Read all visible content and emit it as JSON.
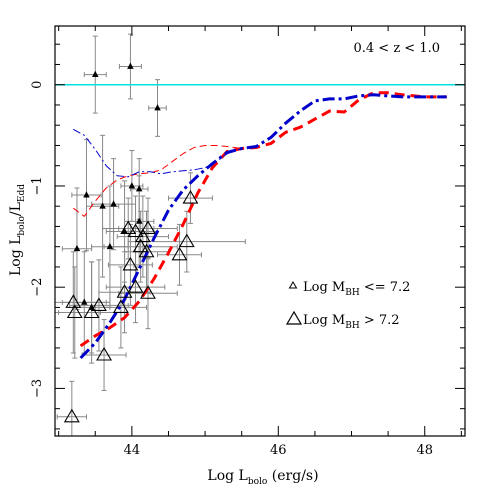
{
  "chart_data": {
    "type": "scatter",
    "title": "",
    "xlabel": {
      "main": "Log L",
      "sub": "bolo",
      "tail": " (erg/s)"
    },
    "ylabel": {
      "main": "Log L",
      "sub1": "bolo",
      "mid": "/L",
      "sub2": "Edd"
    },
    "xlim": [
      42.95,
      48.55
    ],
    "ylim": [
      -3.47,
      0.58
    ],
    "x_ticks": [
      44,
      46,
      48
    ],
    "y_ticks": [
      0,
      -1,
      -2,
      -3
    ],
    "x_tick_labels": [
      "44",
      "46",
      "48"
    ],
    "y_tick_labels": [
      "0",
      "−1",
      "−2",
      "−3"
    ],
    "redshift_label": "0.4  <  z  <  1.0",
    "legend": {
      "small": {
        "main": "Log M",
        "sub": "BH",
        "rel": " <= 7.2"
      },
      "large": {
        "main": "Log M",
        "sub": "BH",
        "rel": " > 7.2"
      }
    },
    "reference_line": {
      "y": 0,
      "color": "#00e0e0"
    },
    "colors": {
      "red": "#ff0000",
      "blue": "#0000cc",
      "points": "#000000",
      "errorbars": "#888888"
    },
    "series": [
      {
        "style": "thick-dashed-red",
        "x": [
          43.3,
          43.5,
          43.7,
          43.9,
          44.1,
          44.3,
          44.5,
          44.7,
          44.9,
          45.1,
          45.3,
          45.5,
          45.7,
          45.9,
          46.1,
          46.3,
          46.5,
          46.7,
          46.9,
          47.1,
          47.3,
          47.5,
          47.7,
          48.0,
          48.3
        ],
        "y": [
          -2.58,
          -2.48,
          -2.4,
          -2.3,
          -2.14,
          -1.92,
          -1.66,
          -1.38,
          -1.07,
          -0.82,
          -0.66,
          -0.63,
          -0.62,
          -0.58,
          -0.47,
          -0.42,
          -0.34,
          -0.26,
          -0.27,
          -0.15,
          -0.08,
          -0.08,
          -0.1,
          -0.12,
          -0.12
        ]
      },
      {
        "style": "thick-dashdot-blue",
        "x": [
          43.3,
          43.5,
          43.7,
          43.9,
          44.1,
          44.3,
          44.5,
          44.7,
          44.9,
          45.1,
          45.3,
          45.5,
          45.7,
          45.9,
          46.1,
          46.3,
          46.5,
          46.7,
          46.9,
          47.1,
          47.3,
          47.5,
          47.7,
          48.0,
          48.3
        ],
        "y": [
          -2.7,
          -2.55,
          -2.35,
          -2.12,
          -1.82,
          -1.52,
          -1.24,
          -1.04,
          -0.9,
          -0.78,
          -0.67,
          -0.63,
          -0.61,
          -0.52,
          -0.38,
          -0.26,
          -0.16,
          -0.14,
          -0.14,
          -0.11,
          -0.1,
          -0.11,
          -0.12,
          -0.12,
          -0.12
        ]
      },
      {
        "style": "thin-dashed-red",
        "x": [
          43.2,
          43.35,
          43.5,
          43.65,
          43.8,
          43.95,
          44.1,
          44.25,
          44.4,
          44.55,
          44.7,
          44.85,
          45.0,
          45.15,
          45.3,
          45.5
        ],
        "y": [
          -1.22,
          -1.3,
          -1.15,
          -1.02,
          -0.94,
          -0.9,
          -0.88,
          -0.87,
          -0.84,
          -0.76,
          -0.68,
          -0.62,
          -0.6,
          -0.6,
          -0.61,
          -0.63
        ]
      },
      {
        "style": "thin-dashdot-blue",
        "x": [
          43.2,
          43.35,
          43.5,
          43.65,
          43.8,
          43.95,
          44.1,
          44.25,
          44.4,
          44.55,
          44.7,
          44.85,
          45.0,
          45.15,
          45.3,
          45.5
        ],
        "y": [
          -0.44,
          -0.5,
          -0.64,
          -0.8,
          -0.9,
          -0.91,
          -0.86,
          -0.86,
          -0.88,
          -0.86,
          -0.85,
          -0.84,
          -0.82,
          -0.76,
          -0.68,
          -0.63
        ]
      }
    ],
    "points_small": [
      {
        "x": 43.5,
        "y": 0.1,
        "ex": 0.15,
        "ey": 0.38
      },
      {
        "x": 43.98,
        "y": 0.18,
        "ex": 0.15,
        "ey": 0.32
      },
      {
        "x": 44.35,
        "y": -0.23,
        "ex": 0.12,
        "ey": 0.28
      },
      {
        "x": 43.38,
        "y": -1.09,
        "ex": 0.2,
        "ey": 0.55
      },
      {
        "x": 43.6,
        "y": -1.2,
        "ex": 0.22,
        "ey": 0.7
      },
      {
        "x": 43.7,
        "y": -1.6,
        "ex": 0.25,
        "ey": 0.6
      },
      {
        "x": 44.1,
        "y": -1.03,
        "ex": 0.12,
        "ey": 0.3
      },
      {
        "x": 43.75,
        "y": -1.18,
        "ex": 0.3,
        "ey": 0.45
      },
      {
        "x": 44.0,
        "y": -1.0,
        "ex": 0.15,
        "ey": 0.35
      },
      {
        "x": 43.25,
        "y": -1.62,
        "ex": 0.2,
        "ey": 0.6
      },
      {
        "x": 44.1,
        "y": -1.35,
        "ex": 0.2,
        "ey": 0.45
      },
      {
        "x": 43.9,
        "y": -1.45,
        "ex": 0.25,
        "ey": 0.5
      },
      {
        "x": 43.35,
        "y": -2.15,
        "ex": 0.3,
        "ey": 0.5
      },
      {
        "x": 43.45,
        "y": -2.2,
        "ex": 0.25,
        "ey": 0.45
      }
    ],
    "points_large": [
      {
        "x": 44.8,
        "y": -1.12,
        "ex": 0.3,
        "ey": 0.25
      },
      {
        "x": 43.95,
        "y": -1.42,
        "ex": 0.35,
        "ey": 0.3
      },
      {
        "x": 44.05,
        "y": -1.45,
        "ex": 0.3,
        "ey": 0.35
      },
      {
        "x": 44.15,
        "y": -1.5,
        "ex": 0.35,
        "ey": 0.4
      },
      {
        "x": 44.22,
        "y": -1.42,
        "ex": 0.4,
        "ey": 0.3
      },
      {
        "x": 44.12,
        "y": -1.6,
        "ex": 0.5,
        "ey": 0.35
      },
      {
        "x": 44.2,
        "y": -1.65,
        "ex": 0.3,
        "ey": 0.4
      },
      {
        "x": 44.75,
        "y": -1.55,
        "ex": 0.8,
        "ey": 0.3
      },
      {
        "x": 44.65,
        "y": -1.68,
        "ex": 0.3,
        "ey": 0.3
      },
      {
        "x": 43.98,
        "y": -1.78,
        "ex": 0.3,
        "ey": 0.4
      },
      {
        "x": 44.05,
        "y": -2.0,
        "ex": 0.4,
        "ey": 0.35
      },
      {
        "x": 43.9,
        "y": -2.05,
        "ex": 0.35,
        "ey": 0.4
      },
      {
        "x": 44.22,
        "y": -2.06,
        "ex": 0.4,
        "ey": 0.35
      },
      {
        "x": 43.2,
        "y": -2.15,
        "ex": 0.5,
        "ey": 0.5
      },
      {
        "x": 43.55,
        "y": -2.18,
        "ex": 0.4,
        "ey": 0.45
      },
      {
        "x": 43.85,
        "y": -2.2,
        "ex": 0.35,
        "ey": 0.4
      },
      {
        "x": 43.45,
        "y": -2.25,
        "ex": 0.45,
        "ey": 0.5
      },
      {
        "x": 43.22,
        "y": -2.25,
        "ex": 0.35,
        "ey": 0.45
      },
      {
        "x": 43.62,
        "y": -2.67,
        "ex": 0.3,
        "ey": 0.35
      },
      {
        "x": 43.18,
        "y": -3.28,
        "ex": 0.2,
        "ey": 0.35
      }
    ]
  }
}
